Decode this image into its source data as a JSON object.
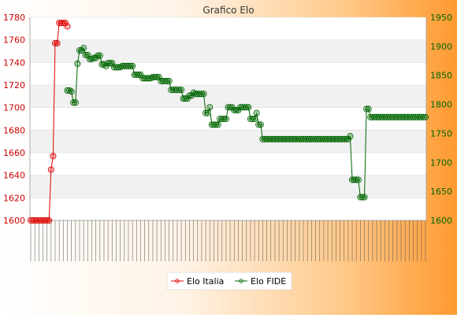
{
  "colors": {
    "italia": "#dd0000",
    "fide": "#006600",
    "left_axis_text": "#cc0000",
    "right_axis_text": "#006600",
    "band": "#f1f1f1",
    "grid": "#dddddd"
  },
  "chart_data": {
    "type": "line",
    "title": "Grafico Elo",
    "grid": true,
    "legend_position": "bottom-center",
    "left_axis": {
      "range": [
        1600,
        1780
      ],
      "ticks": [
        1600,
        1620,
        1640,
        1660,
        1680,
        1700,
        1720,
        1740,
        1760,
        1780
      ]
    },
    "right_axis": {
      "range": [
        1600,
        1950
      ],
      "ticks": [
        1600,
        1650,
        1700,
        1750,
        1800,
        1850,
        1900,
        1950
      ]
    },
    "series": [
      {
        "name": "Elo Italia",
        "axis": "left",
        "color": "#dd0000",
        "values": [
          1600,
          1600,
          1600,
          1600,
          1600,
          1600,
          1600,
          1600,
          1600,
          1600,
          1645,
          1657,
          1757,
          1757,
          1775,
          1775,
          1775,
          1775,
          1772
        ]
      },
      {
        "name": "Elo FIDE",
        "axis": "right",
        "color": "#006600",
        "start_index": 18,
        "values": [
          1824,
          1824,
          1822,
          1803,
          1803,
          1870,
          1893,
          1893,
          1897,
          1885,
          1885,
          1878,
          1878,
          1880,
          1880,
          1884,
          1884,
          1869,
          1869,
          1866,
          1871,
          1871,
          1871,
          1864,
          1864,
          1864,
          1864,
          1866,
          1866,
          1866,
          1866,
          1866,
          1866,
          1851,
          1851,
          1851,
          1851,
          1845,
          1845,
          1845,
          1845,
          1845,
          1847,
          1847,
          1847,
          1847,
          1840,
          1840,
          1840,
          1840,
          1840,
          1825,
          1825,
          1825,
          1825,
          1825,
          1825,
          1810,
          1810,
          1810,
          1815,
          1815,
          1820,
          1818,
          1818,
          1818,
          1818,
          1818,
          1785,
          1785,
          1795,
          1765,
          1765,
          1765,
          1765,
          1775,
          1775,
          1775,
          1775,
          1795,
          1795,
          1795,
          1790,
          1790,
          1790,
          1795,
          1795,
          1795,
          1795,
          1795,
          1775,
          1775,
          1775,
          1785,
          1765,
          1765,
          1740,
          1740,
          1740,
          1740,
          1740,
          1740,
          1740,
          1740,
          1740,
          1740,
          1740,
          1740,
          1740,
          1740,
          1740,
          1740,
          1740,
          1740,
          1740,
          1740,
          1740,
          1740,
          1740,
          1740,
          1740,
          1740,
          1740,
          1740,
          1740,
          1740,
          1740,
          1740,
          1740,
          1740,
          1740,
          1740,
          1740,
          1740,
          1740,
          1740,
          1740,
          1740,
          1740,
          1745,
          1670,
          1670,
          1670,
          1670,
          1640,
          1640,
          1640,
          1792,
          1792,
          1778,
          1778,
          1778,
          1778,
          1778,
          1778,
          1778,
          1778,
          1778,
          1778,
          1778,
          1778,
          1778,
          1778,
          1778,
          1778,
          1778,
          1778,
          1778,
          1778,
          1778,
          1778,
          1778,
          1778,
          1778,
          1778,
          1778,
          1778
        ]
      }
    ]
  }
}
